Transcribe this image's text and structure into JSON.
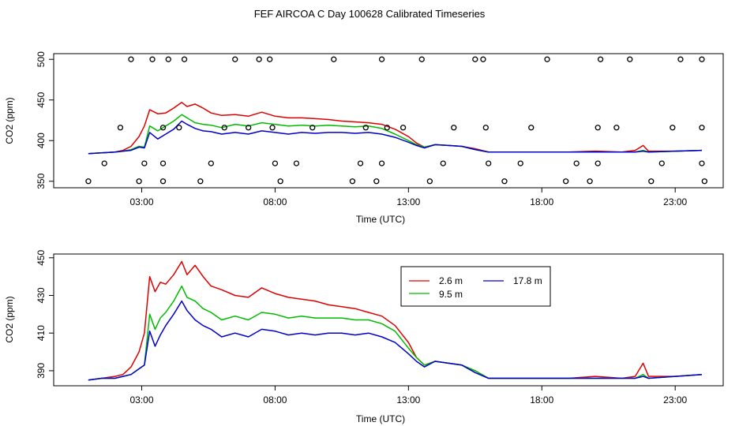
{
  "title": "FEF AIRCOA C  Day 100628  Calibrated Timeseries",
  "colors": {
    "2.6 m": "#dd0000",
    "9.5 m": "#00bb00",
    "17.8 m": "#0000cc",
    "frame": "#000000"
  },
  "chart_data": [
    {
      "type": "scatter",
      "title": "FEF AIRCOA C  Day 100628  Calibrated Timeseries",
      "xlabel": "Time (UTC)",
      "ylabel": "CO2 (ppm)",
      "xlim": [
        -0.3,
        24.8
      ],
      "ylim": [
        342,
        507
      ],
      "xticks": [
        3,
        8,
        13,
        18,
        23
      ],
      "xtick_labels": [
        "03:00",
        "08:00",
        "13:00",
        "18:00",
        "23:00"
      ],
      "yticks": [
        350,
        400,
        450,
        500
      ],
      "ytick_labels": [
        "350",
        "400",
        "450",
        "500"
      ],
      "series": [
        {
          "name": "2.6 m",
          "style": "line",
          "x": [
            1.0,
            1.5,
            2.0,
            2.3,
            2.6,
            2.9,
            3.1,
            3.3,
            3.6,
            3.9,
            4.2,
            4.5,
            4.7,
            5.0,
            5.3,
            5.6,
            6.0,
            6.5,
            7.0,
            7.5,
            8.0,
            8.5,
            9.0,
            9.5,
            10.0,
            10.5,
            11.0,
            11.5,
            12.0,
            12.5,
            13.0,
            13.3,
            13.6,
            14.0,
            14.5,
            15.0,
            15.5,
            16.0,
            17.0,
            18.0,
            19.0,
            20.0,
            21.0,
            21.5,
            21.8,
            22.0,
            23.0,
            24.0
          ],
          "y": [
            384,
            385,
            386,
            388,
            393,
            405,
            418,
            438,
            433,
            434,
            440,
            447,
            442,
            445,
            440,
            434,
            431,
            432,
            430,
            435,
            430,
            428,
            428,
            427,
            426,
            424,
            423,
            422,
            420,
            414,
            405,
            397,
            392,
            395,
            394,
            393,
            390,
            386,
            386,
            386,
            386,
            387,
            386,
            388,
            394,
            387,
            387,
            388
          ]
        },
        {
          "name": "9.5 m",
          "style": "line",
          "x": [
            1.0,
            1.5,
            2.0,
            2.3,
            2.6,
            2.9,
            3.1,
            3.3,
            3.6,
            3.9,
            4.2,
            4.5,
            4.7,
            5.0,
            5.3,
            5.6,
            6.0,
            6.5,
            7.0,
            7.5,
            8.0,
            8.5,
            9.0,
            9.5,
            10.0,
            10.5,
            11.0,
            11.5,
            12.0,
            12.5,
            13.0,
            13.3,
            13.6,
            14.0,
            14.5,
            15.0,
            15.5,
            16.0,
            17.0,
            18.0,
            19.0,
            20.0,
            21.0,
            21.5,
            21.8,
            22.0,
            23.0,
            24.0
          ],
          "y": [
            384,
            385,
            386,
            387,
            389,
            393,
            392,
            418,
            412,
            418,
            424,
            432,
            428,
            422,
            420,
            419,
            416,
            420,
            418,
            422,
            420,
            418,
            419,
            418,
            419,
            418,
            417,
            418,
            415,
            408,
            400,
            395,
            392,
            395,
            394,
            393,
            389,
            386,
            386,
            386,
            386,
            386,
            386,
            386,
            388,
            386,
            387,
            388
          ]
        },
        {
          "name": "17.8 m",
          "style": "line",
          "x": [
            1.0,
            1.5,
            2.0,
            2.3,
            2.6,
            2.9,
            3.1,
            3.3,
            3.6,
            3.9,
            4.2,
            4.5,
            4.7,
            5.0,
            5.3,
            5.6,
            6.0,
            6.5,
            7.0,
            7.5,
            8.0,
            8.5,
            9.0,
            9.5,
            10.0,
            10.5,
            11.0,
            11.5,
            12.0,
            12.5,
            13.0,
            13.3,
            13.6,
            14.0,
            14.5,
            15.0,
            15.5,
            16.0,
            17.0,
            18.0,
            19.0,
            20.0,
            21.0,
            21.5,
            21.8,
            22.0,
            23.0,
            24.0
          ],
          "y": [
            384,
            385,
            386,
            387,
            388,
            392,
            391,
            410,
            402,
            408,
            414,
            424,
            420,
            415,
            412,
            411,
            408,
            410,
            408,
            412,
            410,
            408,
            410,
            409,
            410,
            410,
            409,
            410,
            408,
            404,
            398,
            394,
            391,
            395,
            394,
            393,
            389,
            386,
            386,
            386,
            386,
            386,
            386,
            386,
            387,
            386,
            387,
            388
          ]
        },
        {
          "name": "flags",
          "style": "points",
          "x": [
            1.0,
            1.6,
            2.2,
            2.6,
            2.9,
            3.1,
            3.4,
            3.8,
            3.8,
            3.8,
            4.0,
            4.4,
            4.6,
            5.2,
            5.6,
            6.1,
            6.5,
            7.0,
            7.4,
            7.8,
            7.9,
            8.0,
            8.2,
            8.8,
            9.4,
            10.2,
            10.9,
            11.2,
            11.4,
            11.8,
            12.0,
            12.0,
            12.2,
            12.8,
            13.5,
            13.8,
            14.3,
            14.7,
            15.5,
            15.8,
            15.9,
            16.0,
            16.6,
            17.2,
            17.6,
            18.2,
            18.9,
            19.3,
            19.8,
            20.1,
            20.1,
            20.2,
            20.8,
            21.3,
            22.1,
            22.5,
            22.9,
            23.2,
            24.0,
            24.0,
            24.0,
            24.1
          ],
          "y": [
            350,
            372,
            416,
            500,
            350,
            372,
            500,
            416,
            372,
            350,
            500,
            416,
            500,
            350,
            372,
            416,
            500,
            416,
            500,
            500,
            416,
            372,
            350,
            372,
            416,
            500,
            350,
            372,
            416,
            350,
            372,
            500,
            416,
            416,
            500,
            350,
            372,
            416,
            500,
            500,
            416,
            372,
            350,
            372,
            416,
            500,
            350,
            372,
            350,
            416,
            372,
            500,
            416,
            500,
            350,
            372,
            416,
            500,
            500,
            416,
            372,
            350
          ]
        }
      ]
    },
    {
      "type": "line",
      "xlabel": "Time (UTC)",
      "ylabel": "CO2 (ppm)",
      "xlim": [
        -0.3,
        24.8
      ],
      "ylim": [
        382,
        452
      ],
      "xticks": [
        3,
        8,
        13,
        18,
        23
      ],
      "xtick_labels": [
        "03:00",
        "08:00",
        "13:00",
        "18:00",
        "23:00"
      ],
      "yticks": [
        390,
        410,
        430,
        450
      ],
      "ytick_labels": [
        "390",
        "410",
        "430",
        "450"
      ],
      "legend_position": "top-center",
      "legend": [
        "2.6 m",
        "9.5 m",
        "17.8 m"
      ],
      "series": [
        {
          "name": "2.6 m",
          "x": [
            1.0,
            1.5,
            2.0,
            2.3,
            2.6,
            2.9,
            3.1,
            3.3,
            3.5,
            3.7,
            3.9,
            4.2,
            4.5,
            4.7,
            5.0,
            5.3,
            5.6,
            6.0,
            6.5,
            7.0,
            7.5,
            8.0,
            8.5,
            9.0,
            9.5,
            10.0,
            10.5,
            11.0,
            11.5,
            12.0,
            12.5,
            13.0,
            13.3,
            13.6,
            14.0,
            14.5,
            15.0,
            15.5,
            16.0,
            16.5,
            17.0,
            18.0,
            19.0,
            20.0,
            21.0,
            21.5,
            21.8,
            22.0,
            23.0,
            24.0
          ],
          "y": [
            385,
            386,
            387,
            388,
            392,
            400,
            410,
            440,
            432,
            437,
            436,
            441,
            448,
            441,
            446,
            440,
            435,
            433,
            430,
            429,
            434,
            431,
            429,
            428,
            427,
            425,
            424,
            423,
            421,
            419,
            414,
            405,
            397,
            393,
            395,
            394,
            393,
            390,
            386,
            386,
            386,
            386,
            386,
            387,
            386,
            387,
            394,
            387,
            387,
            388
          ]
        },
        {
          "name": "9.5 m",
          "x": [
            1.0,
            1.5,
            2.0,
            2.3,
            2.6,
            2.9,
            3.1,
            3.3,
            3.5,
            3.7,
            3.9,
            4.2,
            4.5,
            4.7,
            5.0,
            5.3,
            5.6,
            6.0,
            6.5,
            7.0,
            7.5,
            8.0,
            8.5,
            9.0,
            9.5,
            10.0,
            10.5,
            11.0,
            11.5,
            12.0,
            12.5,
            13.0,
            13.3,
            13.6,
            14.0,
            14.5,
            15.0,
            15.5,
            16.0,
            16.5,
            17.0,
            18.0,
            19.0,
            20.0,
            21.0,
            21.5,
            21.8,
            22.0,
            23.0,
            24.0
          ],
          "y": [
            385,
            386,
            386,
            387,
            388,
            391,
            393,
            420,
            412,
            418,
            421,
            427,
            435,
            429,
            427,
            423,
            421,
            417,
            419,
            417,
            421,
            420,
            418,
            419,
            418,
            418,
            418,
            417,
            417,
            415,
            411,
            402,
            397,
            393,
            395,
            394,
            393,
            390,
            386,
            386,
            386,
            386,
            386,
            386,
            386,
            386,
            388,
            386,
            387,
            388
          ]
        },
        {
          "name": "17.8 m",
          "x": [
            1.0,
            1.5,
            2.0,
            2.3,
            2.6,
            2.9,
            3.1,
            3.3,
            3.5,
            3.7,
            3.9,
            4.2,
            4.5,
            4.7,
            5.0,
            5.3,
            5.6,
            6.0,
            6.5,
            7.0,
            7.5,
            8.0,
            8.5,
            9.0,
            9.5,
            10.0,
            10.5,
            11.0,
            11.5,
            12.0,
            12.5,
            13.0,
            13.3,
            13.6,
            14.0,
            14.5,
            15.0,
            15.5,
            16.0,
            16.5,
            17.0,
            18.0,
            19.0,
            20.0,
            21.0,
            21.5,
            21.8,
            22.0,
            23.0,
            24.0
          ],
          "y": [
            385,
            386,
            386,
            387,
            388,
            391,
            393,
            411,
            403,
            409,
            414,
            420,
            427,
            422,
            417,
            414,
            412,
            408,
            410,
            408,
            412,
            411,
            409,
            410,
            409,
            410,
            410,
            409,
            410,
            408,
            405,
            399,
            395,
            392,
            395,
            394,
            393,
            389,
            386,
            386,
            386,
            386,
            386,
            386,
            386,
            386,
            387,
            386,
            387,
            388
          ]
        }
      ]
    }
  ]
}
